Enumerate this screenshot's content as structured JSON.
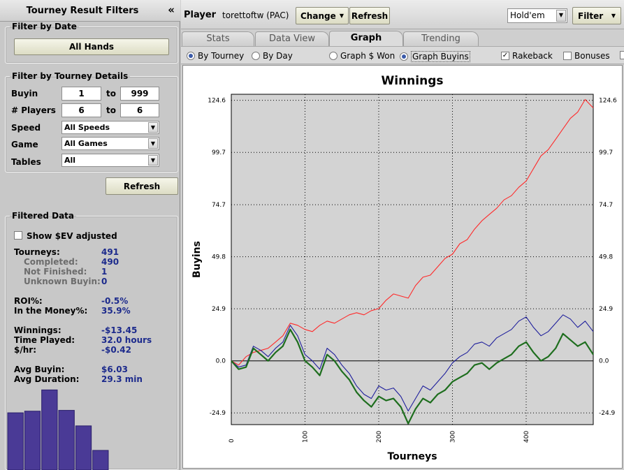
{
  "left_panel": {
    "title": "Tourney Result Filters",
    "collapse_glyph": "«",
    "filter_by_date": {
      "legend": "Filter by Date",
      "all_hands_label": "All Hands"
    },
    "filter_by_details": {
      "legend": "Filter by Tourney Details",
      "buyin_label": "Buyin",
      "buyin_from": "1",
      "buyin_to": "999",
      "players_label": "# Players",
      "players_from": "6",
      "players_to": "6",
      "to_label": "to",
      "speed_label": "Speed",
      "speed_value": "All Speeds",
      "game_label": "Game",
      "game_value": "All Games",
      "tables_label": "Tables",
      "tables_value": "All"
    },
    "refresh_label": "Refresh",
    "filtered_data": {
      "legend": "Filtered Data",
      "show_ev_label": "Show $EV adjusted",
      "show_ev_checked": false,
      "tourneys_label": "Tourneys:",
      "tourneys_value": "491",
      "completed_label": "Completed:",
      "completed_value": "490",
      "not_finished_label": "Not Finished:",
      "not_finished_value": "1",
      "unknown_buyin_label": "Unknown Buyin:",
      "unknown_buyin_value": "0",
      "roi_label": "ROI%:",
      "roi_value": "-0.5%",
      "itm_label": "In the Money%:",
      "itm_value": "35.9%",
      "winnings_label": "Winnings:",
      "winnings_value": "-$13.45",
      "time_played_label": "Time Played:",
      "time_played_value": "32.0 hours",
      "per_hour_label": "$/hr:",
      "per_hour_value": "-$0.42",
      "avg_buyin_label": "Avg Buyin:",
      "avg_buyin_value": "$6.03",
      "avg_duration_label": "Avg Duration:",
      "avg_duration_value": "29.3 min"
    },
    "histogram": {
      "values": [
        0.7,
        0.72,
        0.98,
        0.73,
        0.54,
        0.24
      ],
      "color": "#4a3a96"
    }
  },
  "topbar": {
    "player_label": "Player",
    "player_name": "torettoftw (PAC)",
    "change_label": "Change",
    "refresh_label": "Refresh",
    "game_select_value": "Hold'em",
    "filter_label": "Filter"
  },
  "tabs": [
    {
      "label": "Stats",
      "active": false
    },
    {
      "label": "Data View",
      "active": false
    },
    {
      "label": "Graph",
      "active": true
    },
    {
      "label": "Trending",
      "active": false
    }
  ],
  "options": {
    "by_tourney_label": "By Tourney",
    "by_tourney_selected": true,
    "by_day_label": "By Day",
    "by_day_selected": false,
    "graph_won_label": "Graph $ Won",
    "graph_won_selected": false,
    "graph_buyins_label": "Graph Buyins",
    "graph_buyins_selected": true,
    "rakeback_label": "Rakeback",
    "rakeback_checked": true,
    "bonuses_label": "Bonuses",
    "bonuses_checked": false
  },
  "chart_data": {
    "type": "line",
    "title": "Winnings",
    "xlabel": "Tourneys",
    "ylabel": "Buyins",
    "xlim": [
      0,
      491
    ],
    "ylim": [
      -30.5,
      127.5
    ],
    "x_ticks": [
      0,
      100,
      200,
      300,
      400
    ],
    "y_ticks": [
      -24.9,
      0.0,
      24.9,
      49.8,
      74.7,
      99.7,
      124.6
    ],
    "y_tick_labels": [
      "-24.9",
      "0.0",
      "24.9",
      "49.8",
      "74.7",
      "99.7",
      "124.6"
    ],
    "grid": true,
    "legend": "none",
    "series": [
      {
        "color": "#ff2a2a",
        "x": [
          0,
          10,
          20,
          30,
          40,
          50,
          60,
          70,
          80,
          90,
          100,
          110,
          120,
          130,
          140,
          150,
          160,
          170,
          180,
          190,
          200,
          210,
          220,
          230,
          240,
          250,
          260,
          270,
          280,
          290,
          300,
          310,
          320,
          330,
          340,
          350,
          360,
          370,
          380,
          390,
          400,
          410,
          420,
          430,
          440,
          450,
          460,
          470,
          480,
          491
        ],
        "y": [
          0,
          -2,
          2,
          4,
          5,
          6,
          9,
          12,
          18,
          17,
          15,
          14,
          17,
          19,
          18,
          20,
          22,
          23,
          22,
          24,
          25,
          29,
          32,
          31,
          30,
          36,
          40,
          41,
          45,
          49,
          51,
          56,
          58,
          63,
          67,
          70,
          73,
          77,
          79,
          83,
          86,
          92,
          98,
          101,
          106,
          111,
          116,
          119,
          125,
          121
        ]
      },
      {
        "color": "#1e1e9c",
        "x": [
          0,
          10,
          20,
          30,
          40,
          50,
          60,
          70,
          80,
          90,
          100,
          110,
          120,
          130,
          140,
          150,
          160,
          170,
          180,
          190,
          200,
          210,
          220,
          230,
          240,
          250,
          260,
          270,
          280,
          290,
          300,
          310,
          320,
          330,
          340,
          350,
          360,
          370,
          380,
          390,
          400,
          410,
          420,
          430,
          440,
          450,
          460,
          470,
          480,
          491
        ],
        "y": [
          0,
          -3,
          -2,
          7,
          5,
          2,
          6,
          9,
          17,
          12,
          3,
          0,
          -4,
          6,
          3,
          -2,
          -6,
          -12,
          -16,
          -18,
          -12,
          -14,
          -13,
          -17,
          -24,
          -18,
          -12,
          -14,
          -10,
          -6,
          -1,
          2,
          4,
          8,
          9,
          7,
          11,
          13,
          15,
          19,
          21,
          16,
          12,
          14,
          18,
          22,
          20,
          16,
          19,
          14
        ]
      },
      {
        "color": "#1e6e1e",
        "x": [
          0,
          10,
          20,
          30,
          40,
          50,
          60,
          70,
          80,
          90,
          100,
          110,
          120,
          130,
          140,
          150,
          160,
          170,
          180,
          190,
          200,
          210,
          220,
          230,
          240,
          250,
          260,
          270,
          280,
          290,
          300,
          310,
          320,
          330,
          340,
          350,
          360,
          370,
          380,
          390,
          400,
          410,
          420,
          430,
          440,
          450,
          460,
          470,
          480,
          491
        ],
        "y": [
          0,
          -4,
          -3,
          6,
          3,
          0,
          4,
          7,
          15,
          9,
          0,
          -3,
          -7,
          3,
          0,
          -5,
          -9,
          -15,
          -19,
          -22,
          -17,
          -19,
          -18,
          -22,
          -30,
          -23,
          -18,
          -20,
          -16,
          -14,
          -10,
          -8,
          -6,
          -2,
          -1,
          -4,
          -1,
          1,
          3,
          7,
          9,
          4,
          0,
          2,
          6,
          13,
          10,
          7,
          9,
          3
        ]
      }
    ]
  }
}
